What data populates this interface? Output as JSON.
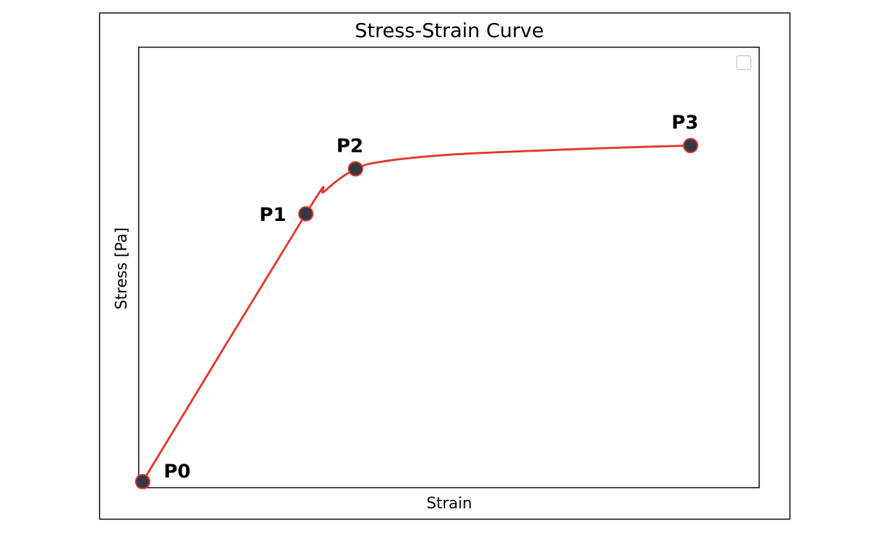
{
  "chart_data": {
    "type": "line",
    "title": "Stress-Strain Curve",
    "xlabel": "Strain",
    "ylabel": "Stress [Pa]",
    "xlim": [
      0,
      1
    ],
    "ylim": [
      0,
      1
    ],
    "grid": false,
    "legend": {
      "placement": "top-right",
      "entries": []
    },
    "points": [
      {
        "label": "P0",
        "x": 0.007,
        "y": 0.013
      },
      {
        "label": "P1",
        "x": 0.27,
        "y": 0.621
      },
      {
        "label": "P2",
        "x": 0.35,
        "y": 0.723
      },
      {
        "label": "P3",
        "x": 0.89,
        "y": 0.776
      }
    ],
    "curve": [
      [
        0.007,
        0.013
      ],
      [
        0.27,
        0.621
      ],
      [
        0.3,
        0.672
      ],
      [
        0.35,
        0.723
      ],
      [
        0.4,
        0.741
      ],
      [
        0.5,
        0.755
      ],
      [
        0.6,
        0.762
      ],
      [
        0.75,
        0.77
      ],
      [
        0.89,
        0.776
      ]
    ],
    "colors": {
      "curve": "#e03a2c",
      "marker_fill": "#323844",
      "marker_edge": "#e03a2c"
    }
  }
}
